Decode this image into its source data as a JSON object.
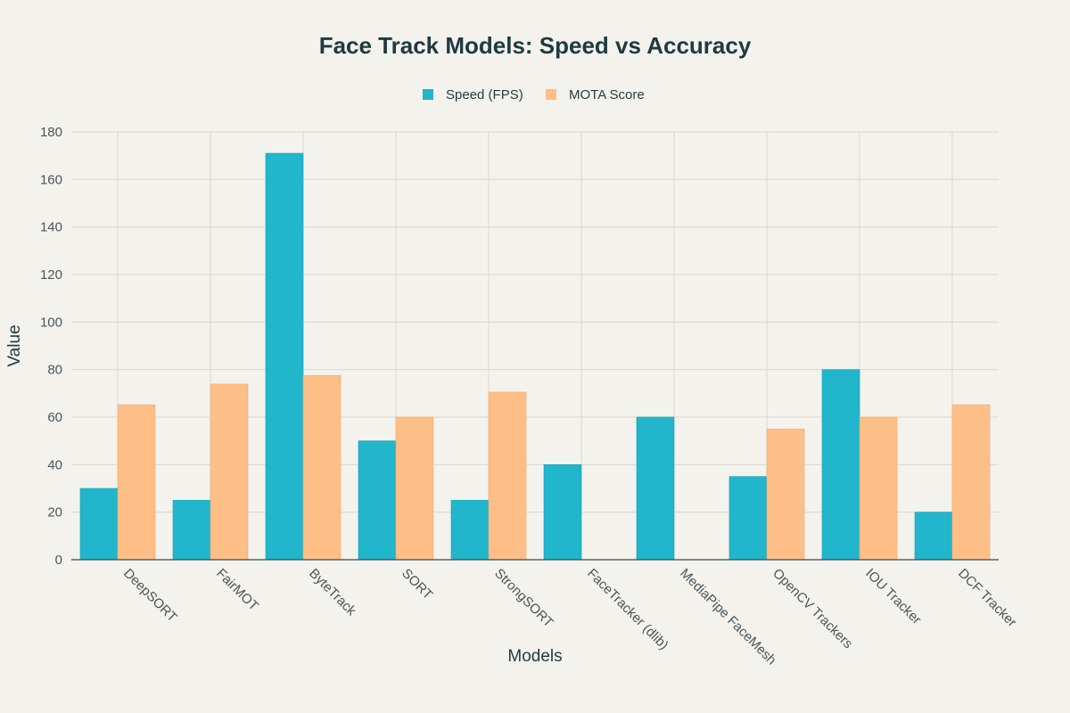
{
  "chart_data": {
    "type": "bar",
    "title": "Face Track Models: Speed vs Accuracy",
    "xlabel": "Models",
    "ylabel": "Value",
    "ylim": [
      0,
      180
    ],
    "yticks": [
      0,
      20,
      40,
      60,
      80,
      100,
      120,
      140,
      160,
      180
    ],
    "grid": true,
    "legend_placement": "top-center",
    "categories": [
      "DeepSORT",
      "FairMOT",
      "ByteTrack",
      "SORT",
      "StrongSORT",
      "FaceTracker (dlib)",
      "MediaPipe FaceMesh",
      "OpenCV Trackers",
      "IOU Tracker",
      "DCF Tracker"
    ],
    "series": [
      {
        "name": "Speed (FPS)",
        "color": "#21b6cb",
        "values": [
          30,
          25,
          171,
          50,
          25,
          40,
          60,
          35,
          80,
          20
        ]
      },
      {
        "name": "MOTA Score",
        "color": "#fdbf87",
        "values": [
          65.2,
          73.9,
          77.5,
          60,
          70.5,
          null,
          null,
          55,
          60,
          65.2
        ]
      }
    ]
  }
}
